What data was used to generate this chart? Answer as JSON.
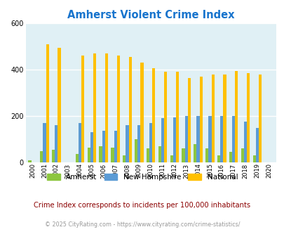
{
  "title": "Amherst Violent Crime Index",
  "title_color": "#1874CD",
  "years": [
    2000,
    2001,
    2002,
    2003,
    2004,
    2005,
    2006,
    2007,
    2008,
    2009,
    2010,
    2011,
    2012,
    2013,
    2014,
    2015,
    2016,
    2017,
    2018,
    2019,
    2020
  ],
  "amherst": [
    10,
    50,
    55,
    0,
    35,
    65,
    70,
    65,
    30,
    100,
    60,
    70,
    30,
    60,
    80,
    60,
    30,
    45,
    60,
    30,
    0
  ],
  "new_hampshire": [
    0,
    170,
    160,
    0,
    170,
    130,
    135,
    135,
    160,
    160,
    170,
    190,
    195,
    200,
    200,
    200,
    200,
    200,
    175,
    150,
    0
  ],
  "national": [
    0,
    510,
    495,
    0,
    460,
    470,
    470,
    460,
    455,
    430,
    405,
    390,
    390,
    365,
    370,
    380,
    380,
    395,
    385,
    380,
    0
  ],
  "amherst_color": "#8DC63F",
  "nh_color": "#5B9BD5",
  "national_color": "#FFC000",
  "bg_color": "#E0F0F5",
  "ylim": [
    0,
    600
  ],
  "ytick_interval": 200,
  "subtitle": "Crime Index corresponds to incidents per 100,000 inhabitants",
  "footer": "© 2025 CityRating.com - https://www.cityrating.com/crime-statistics/",
  "subtitle_color": "#8B0000",
  "footer_color": "#999999",
  "title_fontsize": 10.5,
  "bar_width": 0.25
}
